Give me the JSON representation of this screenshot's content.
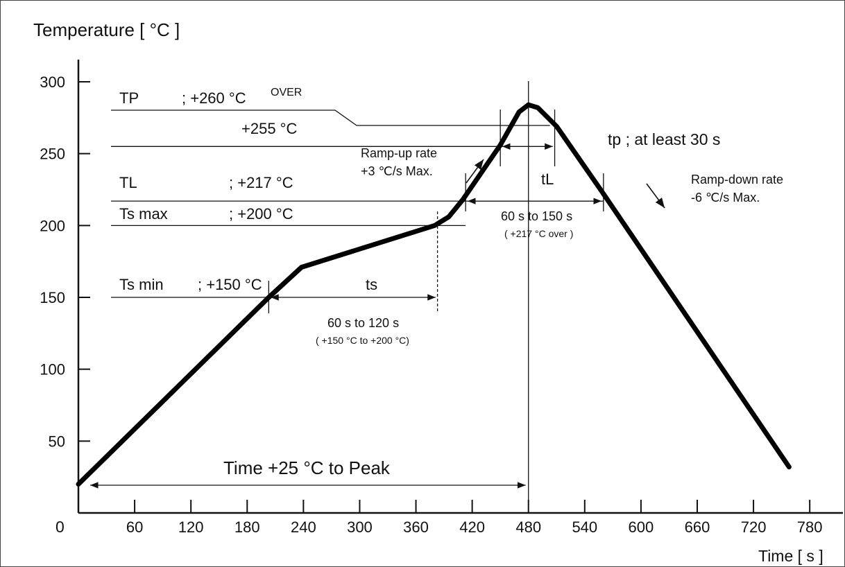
{
  "chart_data": {
    "type": "line",
    "title": "",
    "ylabel": "Temperature [ °C ]",
    "xlabel": "Time [ s ]",
    "xlim": [
      0,
      780
    ],
    "ylim": [
      0,
      300
    ],
    "x_ticks": [
      0,
      60,
      120,
      180,
      240,
      300,
      360,
      420,
      480,
      540,
      600,
      660,
      720,
      780
    ],
    "y_ticks": [
      50,
      100,
      150,
      200,
      250,
      300
    ],
    "series": [
      {
        "points": [
          [
            0,
            20
          ],
          [
            203,
            150
          ],
          [
            238,
            171
          ],
          [
            380,
            200
          ],
          [
            395,
            206
          ],
          [
            410,
            218
          ],
          [
            450,
            256
          ],
          [
            470,
            279
          ],
          [
            480,
            284
          ],
          [
            490,
            282
          ],
          [
            510,
            269
          ],
          [
            558,
            224
          ],
          [
            758,
            32
          ]
        ]
      }
    ],
    "reference_lines": [
      {
        "label": "TP",
        "text": "; +260 °C",
        "superscript": "OVER"
      },
      {
        "label": "",
        "text": "+255 °C"
      },
      {
        "label": "TL",
        "text": "; +217 °C"
      },
      {
        "label": "Ts max",
        "text": "; +200 °C"
      },
      {
        "label": "Ts min",
        "text": "; +150 °C"
      }
    ],
    "annotations": {
      "ramp_up": [
        "Ramp-up rate",
        "+3 ℃/s Max."
      ],
      "ramp_down": [
        "Ramp-down rate",
        "-6 ℃/s Max."
      ],
      "tp": "tp ; at least 30 s",
      "tl": "tL",
      "tl_range": "60 s  to  150 s",
      "tl_note": "( +217 °C  over )",
      "ts": "ts",
      "ts_range": "60 s  to  120 s",
      "ts_note": "( +150 °C to +200 °C)",
      "peak_time": "Time +25 °C to Peak"
    },
    "origin_label": "0"
  }
}
